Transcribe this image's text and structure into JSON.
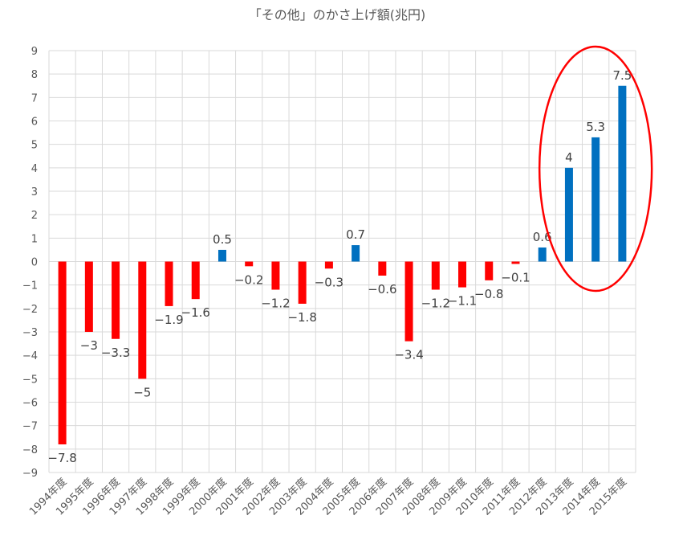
{
  "chart_data": {
    "type": "bar",
    "title": "「その他」のかさ上げ額(兆円)",
    "xlabel": "",
    "ylabel": "",
    "ylim": [
      -9,
      9
    ],
    "yticks": [
      9,
      8,
      7,
      6,
      5,
      4,
      3,
      2,
      1,
      0,
      -1,
      -2,
      -3,
      -4,
      -5,
      -6,
      -7,
      -8,
      -9
    ],
    "grid": true,
    "legend": "none",
    "categories": [
      "1994年度",
      "1995年度",
      "1996年度",
      "1997年度",
      "1998年度",
      "1999年度",
      "2000年度",
      "2001年度",
      "2002年度",
      "2003年度",
      "2004年度",
      "2005年度",
      "2006年度",
      "2007年度",
      "2008年度",
      "2009年度",
      "2010年度",
      "2011年度",
      "2012年度",
      "2013年度",
      "2014年度",
      "2015年度"
    ],
    "values": [
      -7.8,
      -3,
      -3.3,
      -5,
      -1.9,
      -1.6,
      0.5,
      -0.2,
      -1.2,
      -1.8,
      -0.3,
      0.7,
      -0.6,
      -3.4,
      -1.2,
      -1.1,
      -0.8,
      -0.1,
      0.6,
      4,
      5.3,
      7.5
    ],
    "colors": {
      "positive": "#0070C0",
      "negative": "#FF0000",
      "annotation": "#FF0000"
    },
    "annotation": {
      "shape": "ellipse",
      "highlights": [
        "2013年度",
        "2014年度",
        "2015年度"
      ]
    }
  }
}
